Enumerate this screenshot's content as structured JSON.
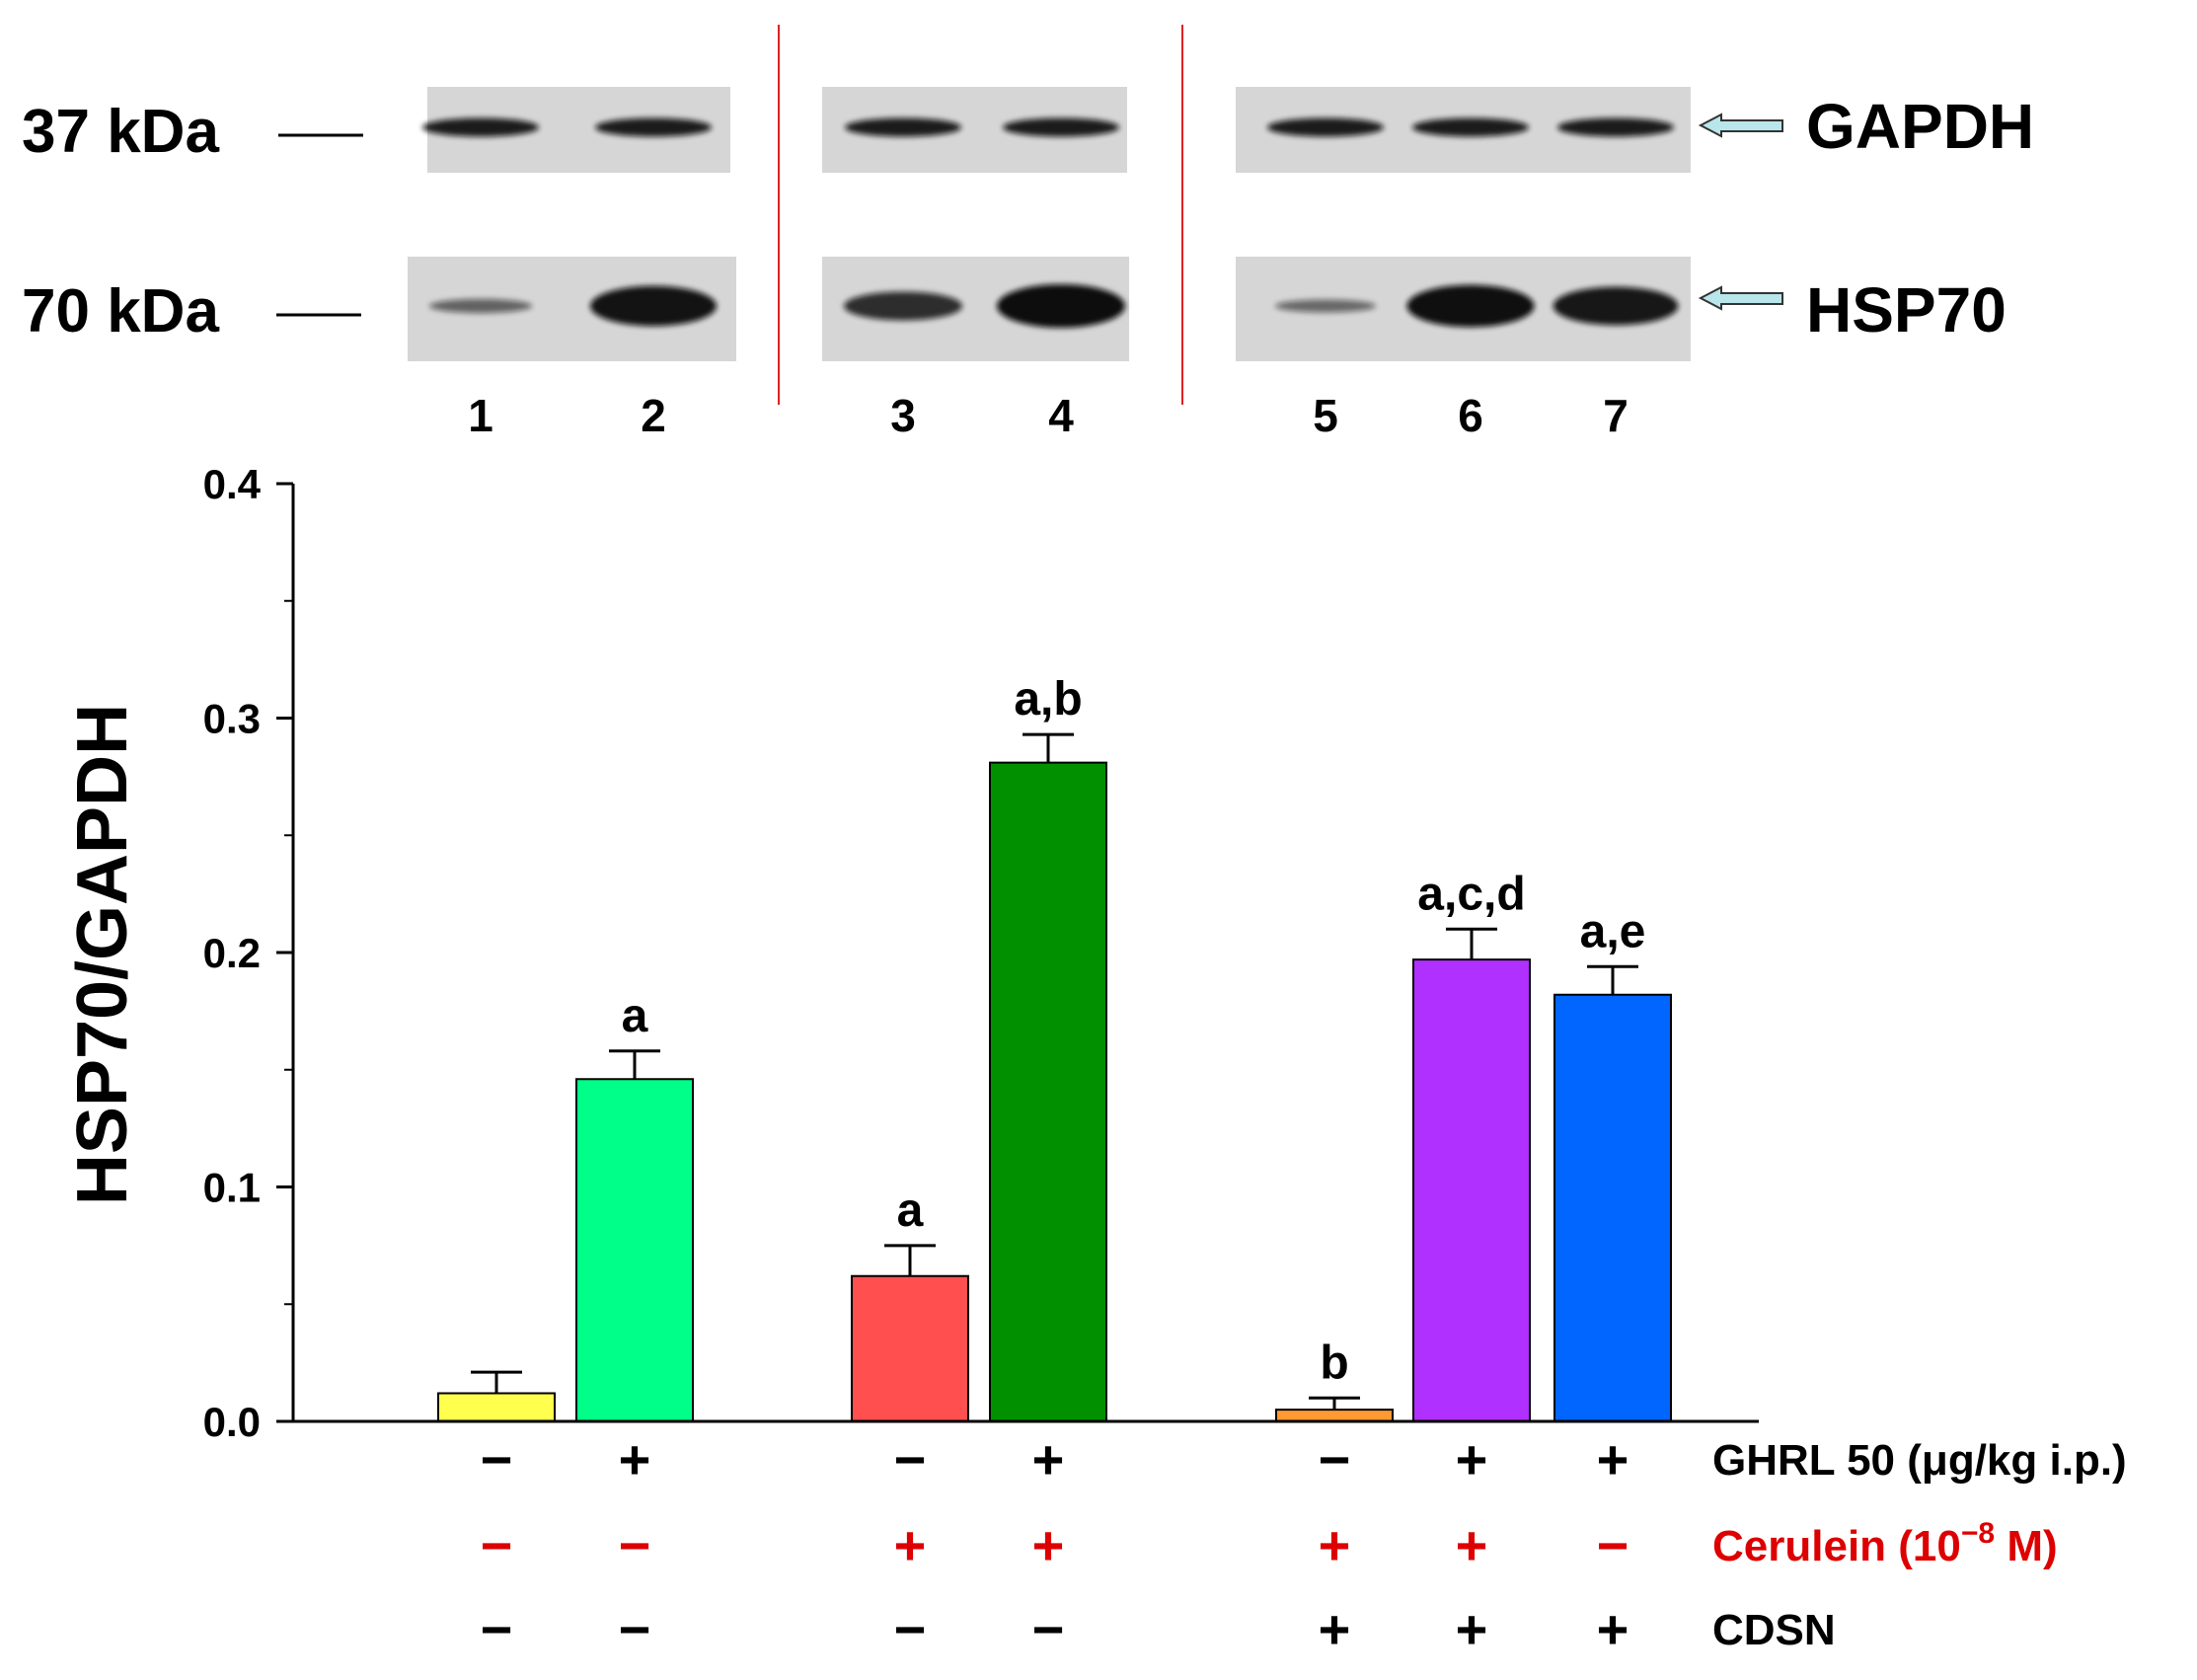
{
  "blot": {
    "markers": [
      {
        "label": "37 kDa"
      },
      {
        "label": "70 kDa"
      }
    ],
    "proteins": [
      {
        "label": "GAPDH"
      },
      {
        "label": "HSP70"
      }
    ],
    "lanes": [
      "1",
      "2",
      "3",
      "4",
      "5",
      "6",
      "7"
    ],
    "band_intensity": {
      "GAPDH": [
        0.85,
        0.85,
        0.85,
        0.85,
        0.85,
        0.85,
        0.85
      ],
      "HSP70": [
        0.35,
        0.95,
        0.75,
        1.0,
        0.3,
        0.98,
        0.92
      ]
    }
  },
  "chart_data": {
    "type": "bar",
    "ylabel": "HSP70/GAPDH",
    "ylim": [
      0,
      0.4
    ],
    "yticks": [
      "0.0",
      "0.1",
      "0.2",
      "0.3",
      "0.4"
    ],
    "bars": [
      {
        "value": 0.012,
        "error": 0.009,
        "color": "#ffff4d",
        "annotation": ""
      },
      {
        "value": 0.146,
        "error": 0.012,
        "color": "#00ff88",
        "annotation": "a"
      },
      {
        "value": 0.062,
        "error": 0.013,
        "color": "#ff4f4f",
        "annotation": "a"
      },
      {
        "value": 0.281,
        "error": 0.012,
        "color": "#009000",
        "annotation": "a,b"
      },
      {
        "value": 0.005,
        "error": 0.005,
        "color": "#ff9933",
        "annotation": "b"
      },
      {
        "value": 0.197,
        "error": 0.013,
        "color": "#b030ff",
        "annotation": "a,c,d"
      },
      {
        "value": 0.182,
        "error": 0.012,
        "color": "#0066ff",
        "annotation": "a,e"
      }
    ],
    "treatments": [
      {
        "label": "GHRL 50 (μg/kg i.p.)",
        "color": "#000000",
        "signs": [
          "−",
          "+",
          "−",
          "+",
          "−",
          "+",
          "+"
        ]
      },
      {
        "label_main": "Cerulein (10",
        "label_exp": "−8",
        "label_tail": " M)",
        "color": "#dd0000",
        "signs": [
          "−",
          "−",
          "+",
          "+",
          "+",
          "+",
          "−"
        ]
      },
      {
        "label": "CDSN",
        "color": "#000000",
        "signs": [
          "−",
          "−",
          "−",
          "−",
          "+",
          "+",
          "+"
        ]
      }
    ]
  },
  "colors": {
    "divider": "#dd2222",
    "arrow": "#b8e6ea",
    "axis": "#000000"
  }
}
